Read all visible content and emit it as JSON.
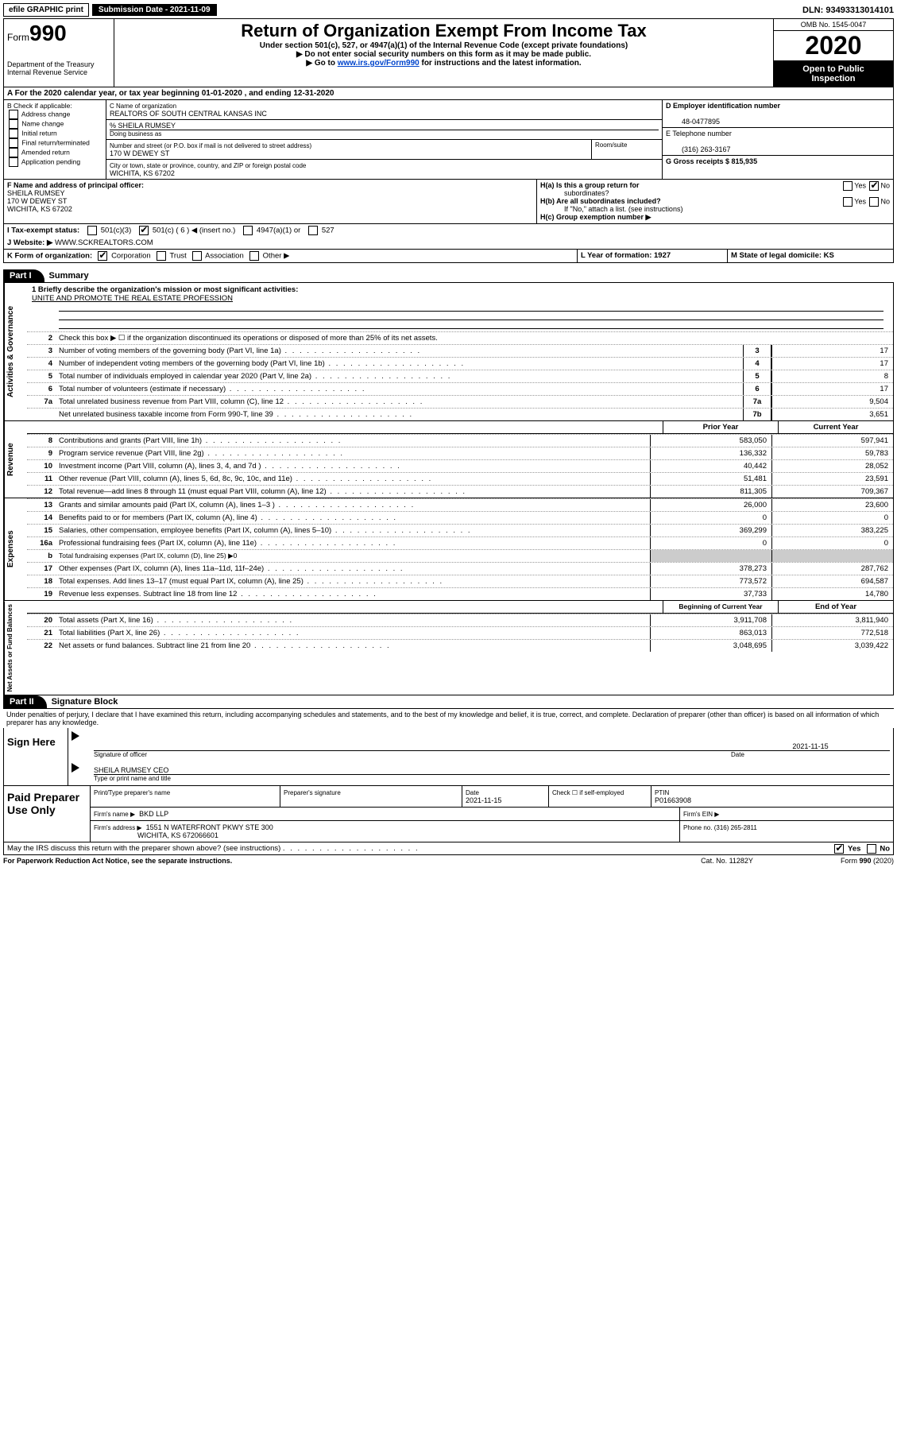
{
  "topbar": {
    "efile": "efile GRAPHIC print",
    "subdate_label": "Submission Date - 2021-11-09",
    "dln": "DLN: 93493313014101"
  },
  "header": {
    "form_small": "Form",
    "form_num": "990",
    "dept": "Department of the Treasury",
    "irs": "Internal Revenue Service",
    "title": "Return of Organization Exempt From Income Tax",
    "sub1": "Under section 501(c), 527, or 4947(a)(1) of the Internal Revenue Code (except private foundations)",
    "sub2": "▶ Do not enter social security numbers on this form as it may be made public.",
    "sub3a": "▶ Go to ",
    "sub3link": "www.irs.gov/Form990",
    "sub3b": " for instructions and the latest information.",
    "omb": "OMB No. 1545-0047",
    "year": "2020",
    "open1": "Open to Public",
    "open2": "Inspection"
  },
  "rowA": "A For the 2020 calendar year, or tax year beginning 01-01-2020   , and ending 12-31-2020",
  "colB": {
    "title": "B Check if applicable:",
    "o1": "Address change",
    "o2": "Name change",
    "o3": "Initial return",
    "o4": "Final return/terminated",
    "o5": "Amended return",
    "o6": "Application pending"
  },
  "colC": {
    "c1a": "C Name of organization",
    "c1b": "REALTORS OF SOUTH CENTRAL KANSAS INC",
    "c2a": "% SHEILA RUMSEY",
    "c2b": "Doing business as",
    "c3a": "Number and street (or P.O. box if mail is not delivered to street address)",
    "c3b": "Room/suite",
    "c3v": "170 W DEWEY ST",
    "c4a": "City or town, state or province, country, and ZIP or foreign postal code",
    "c4v": "WICHITA, KS  67202"
  },
  "colD": {
    "d1": "D Employer identification number",
    "d1v": "48-0477895",
    "e1": "E Telephone number",
    "e1v": "(316) 263-3167",
    "g1": "G Gross receipts $ 815,935"
  },
  "colF": {
    "lbl": "F Name and address of principal officer:",
    "v1": "SHEILA RUMSEY",
    "v2": "170 W DEWEY ST",
    "v3": "WICHITA, KS  67202"
  },
  "colH": {
    "ha": "H(a)  Is this a group return for",
    "ha2": "subordinates?",
    "hb": "H(b)  Are all subordinates included?",
    "hb2": "If \"No,\" attach a list. (see instructions)",
    "hc": "H(c)  Group exemption number ▶",
    "yes": "Yes",
    "no": "No"
  },
  "rowI": {
    "lbl": "I  Tax-exempt status:",
    "o1": "501(c)(3)",
    "o2": "501(c) ( 6 ) ◀ (insert no.)",
    "o3": "4947(a)(1) or",
    "o4": "527"
  },
  "rowJ": {
    "lbl": "J   Website: ▶",
    "val": " WWW.SCKREALTORS.COM"
  },
  "rowK": {
    "lbl": "K Form of organization:",
    "o1": "Corporation",
    "o2": "Trust",
    "o3": "Association",
    "o4": "Other ▶"
  },
  "rowL": {
    "lbl": "L Year of formation: 1927"
  },
  "rowM": {
    "lbl": "M State of legal domicile: KS"
  },
  "part1": {
    "tab": "Part I",
    "title": "Summary"
  },
  "summary": {
    "q1a": "1   Briefly describe the organization's mission or most significant activities:",
    "q1b": "UNITE AND PROMOTE THE REAL ESTATE PROFESSION",
    "q2": "Check this box ▶ ☐  if the organization discontinued its operations or disposed of more than 25% of its net assets.",
    "lines_single": [
      {
        "n": "3",
        "d": "Number of voting members of the governing body (Part VI, line 1a)",
        "c": "3",
        "v": "17"
      },
      {
        "n": "4",
        "d": "Number of independent voting members of the governing body (Part VI, line 1b)",
        "c": "4",
        "v": "17"
      },
      {
        "n": "5",
        "d": "Total number of individuals employed in calendar year 2020 (Part V, line 2a)",
        "c": "5",
        "v": "8"
      },
      {
        "n": "6",
        "d": "Total number of volunteers (estimate if necessary)",
        "c": "6",
        "v": "17"
      },
      {
        "n": "7a",
        "d": "Total unrelated business revenue from Part VIII, column (C), line 12",
        "c": "7a",
        "v": "9,504"
      },
      {
        "n": "",
        "d": "Net unrelated business taxable income from Form 990-T, line 39",
        "c": "7b",
        "v": "3,651"
      }
    ],
    "hdr_prior": "Prior Year",
    "hdr_curr": "Current Year",
    "revenue": [
      {
        "n": "8",
        "d": "Contributions and grants (Part VIII, line 1h)",
        "p": "583,050",
        "c": "597,941"
      },
      {
        "n": "9",
        "d": "Program service revenue (Part VIII, line 2g)",
        "p": "136,332",
        "c": "59,783"
      },
      {
        "n": "10",
        "d": "Investment income (Part VIII, column (A), lines 3, 4, and 7d )",
        "p": "40,442",
        "c": "28,052"
      },
      {
        "n": "11",
        "d": "Other revenue (Part VIII, column (A), lines 5, 6d, 8c, 9c, 10c, and 11e)",
        "p": "51,481",
        "c": "23,591"
      },
      {
        "n": "12",
        "d": "Total revenue—add lines 8 through 11 (must equal Part VIII, column (A), line 12)",
        "p": "811,305",
        "c": "709,367"
      }
    ],
    "expenses": [
      {
        "n": "13",
        "d": "Grants and similar amounts paid (Part IX, column (A), lines 1–3 )",
        "p": "26,000",
        "c": "23,600"
      },
      {
        "n": "14",
        "d": "Benefits paid to or for members (Part IX, column (A), line 4)",
        "p": "0",
        "c": "0"
      },
      {
        "n": "15",
        "d": "Salaries, other compensation, employee benefits (Part IX, column (A), lines 5–10)",
        "p": "369,299",
        "c": "383,225"
      },
      {
        "n": "16a",
        "d": "Professional fundraising fees (Part IX, column (A), line 11e)",
        "p": "0",
        "c": "0"
      },
      {
        "n": "b",
        "d": "Total fundraising expenses (Part IX, column (D), line 25) ▶0",
        "p": "",
        "c": "",
        "gray": true
      },
      {
        "n": "17",
        "d": "Other expenses (Part IX, column (A), lines 11a–11d, 11f–24e)",
        "p": "378,273",
        "c": "287,762"
      },
      {
        "n": "18",
        "d": "Total expenses. Add lines 13–17 (must equal Part IX, column (A), line 25)",
        "p": "773,572",
        "c": "694,587"
      },
      {
        "n": "19",
        "d": "Revenue less expenses. Subtract line 18 from line 12",
        "p": "37,733",
        "c": "14,780"
      }
    ],
    "hdr_beg": "Beginning of Current Year",
    "hdr_end": "End of Year",
    "netassets": [
      {
        "n": "20",
        "d": "Total assets (Part X, line 16)",
        "p": "3,911,708",
        "c": "3,811,940"
      },
      {
        "n": "21",
        "d": "Total liabilities (Part X, line 26)",
        "p": "863,013",
        "c": "772,518"
      },
      {
        "n": "22",
        "d": "Net assets or fund balances. Subtract line 21 from line 20",
        "p": "3,048,695",
        "c": "3,039,422"
      }
    ]
  },
  "vlabels": {
    "gov": "Activities & Governance",
    "rev": "Revenue",
    "exp": "Expenses",
    "net": "Net Assets or Fund Balances"
  },
  "part2": {
    "tab": "Part II",
    "title": "Signature Block"
  },
  "penalties": "Under penalties of perjury, I declare that I have examined this return, including accompanying schedules and statements, and to the best of my knowledge and belief, it is true, correct, and complete. Declaration of preparer (other than officer) is based on all information of which preparer has any knowledge.",
  "sign": {
    "here": "Sign Here",
    "sig_officer": "Signature of officer",
    "date": "Date",
    "datev": "2021-11-15",
    "name": "SHEILA RUMSEY CEO",
    "type": "Type or print name and title"
  },
  "paid": {
    "lbl": "Paid Preparer Use Only",
    "h1": "Print/Type preparer's name",
    "h2": "Preparer's signature",
    "h3": "Date",
    "h3v": "2021-11-15",
    "h4": "Check ☐ if self-employed",
    "h5": "PTIN",
    "h5v": "P01663908",
    "firm_lbl": "Firm's name    ▶",
    "firm": "BKD LLP",
    "ein_lbl": "Firm's EIN ▶",
    "addr_lbl": "Firm's address ▶",
    "addr1": "1551 N WATERFRONT PKWY STE 300",
    "addr2": "WICHITA, KS  672066601",
    "phone_lbl": "Phone no. (316) 265-2811"
  },
  "discuss": "May the IRS discuss this return with the preparer shown above? (see instructions)",
  "footer": {
    "l": "For Paperwork Reduction Act Notice, see the separate instructions.",
    "c": "Cat. No. 11282Y",
    "r": "Form 990 (2020)"
  }
}
